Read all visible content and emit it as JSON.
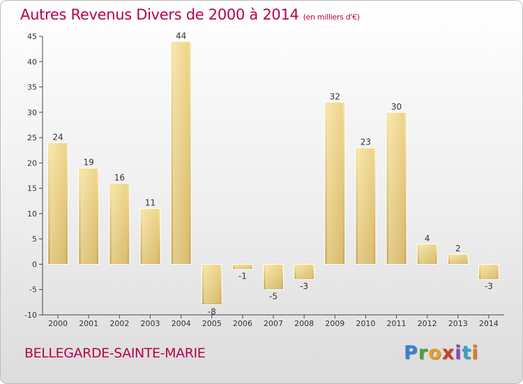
{
  "title": "Autres Revenus Divers de 2000 à 2014",
  "unit": "(en milliers d'€)",
  "commune": "BELLEGARDE-SAINTE-MARIE",
  "logo": {
    "letters": [
      "P",
      "r",
      "o",
      "x",
      "i",
      "t",
      "i"
    ]
  },
  "colors": {
    "title": "#b8004f",
    "bar_light": "#f7e3a3",
    "bar_dark": "#c8aa5c",
    "axis": "#444444"
  },
  "chart_data": {
    "type": "bar",
    "title": "Autres Revenus Divers de 2000 à 2014",
    "xlabel": "",
    "ylabel": "",
    "categories": [
      "2000",
      "2001",
      "2002",
      "2003",
      "2004",
      "2005",
      "2006",
      "2007",
      "2008",
      "2009",
      "2010",
      "2011",
      "2012",
      "2013",
      "2014"
    ],
    "values": [
      24,
      19,
      16,
      11,
      44,
      -8,
      -1,
      -5,
      -3,
      32,
      23,
      30,
      4,
      2,
      -3
    ],
    "ylim": [
      -10,
      45
    ],
    "yticks": [
      -10,
      -5,
      0,
      5,
      10,
      15,
      20,
      25,
      30,
      35,
      40,
      45
    ],
    "grid": false,
    "legend": "none"
  }
}
